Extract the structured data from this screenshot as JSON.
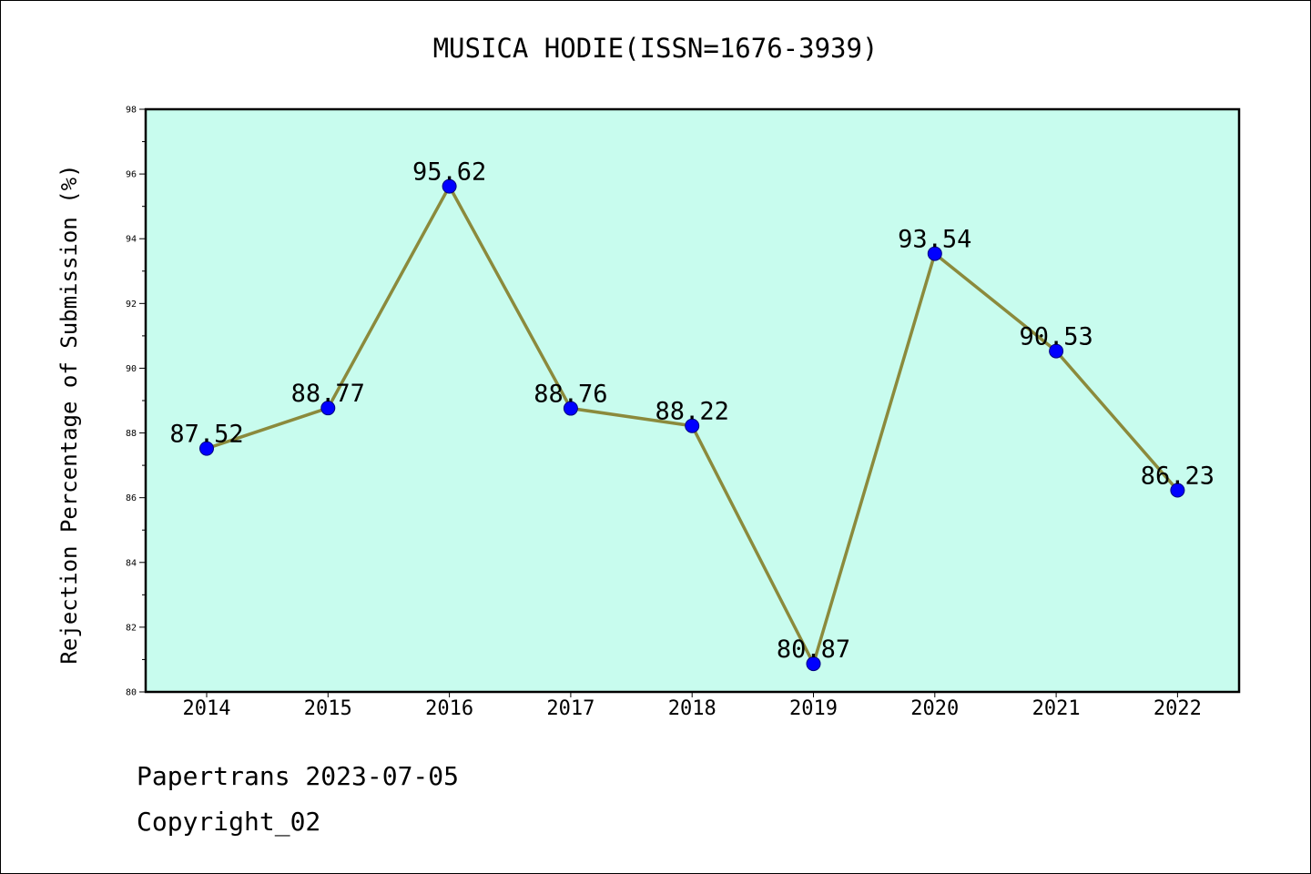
{
  "chart_data": {
    "type": "line",
    "title": "MUSICA HODIE(ISSN=1676-3939)",
    "xlabel": "",
    "ylabel": "Rejection Percentage of Submission (%)",
    "categories": [
      "2014",
      "2015",
      "2016",
      "2017",
      "2018",
      "2019",
      "2020",
      "2021",
      "2022"
    ],
    "values": [
      87.52,
      88.77,
      95.62,
      88.76,
      88.22,
      80.87,
      93.54,
      90.53,
      86.23
    ],
    "data_labels": [
      "87.52",
      "88.77",
      "95.62",
      "88.76",
      "88.22",
      "80.87",
      "93.54",
      "90.53",
      "86.23"
    ],
    "ylim": [
      80,
      98
    ],
    "yticks": [
      80,
      82,
      84,
      86,
      88,
      90,
      92,
      94,
      96,
      98
    ],
    "grid": false,
    "colors": {
      "plot_background": "#c8fcee",
      "line": "#8b8a3c",
      "marker": "#0000ff"
    }
  },
  "footer": {
    "line1": "Papertrans 2023-07-05",
    "line2": "Copyright_02"
  }
}
